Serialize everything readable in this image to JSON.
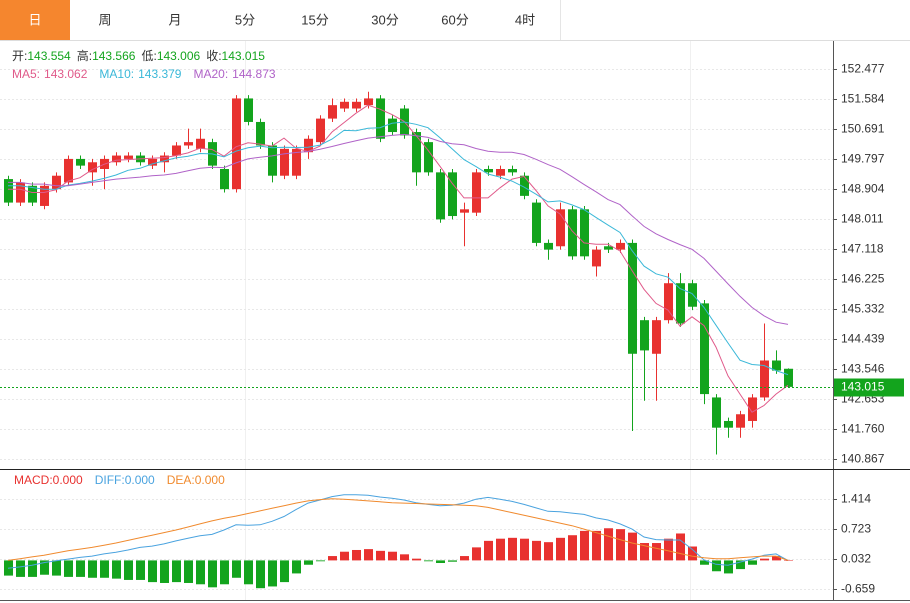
{
  "tabs": [
    "日",
    "周",
    "月",
    "5分",
    "15分",
    "30分",
    "60分",
    "4时"
  ],
  "active_tab": 0,
  "chart_data": [
    {
      "type": "candlestick",
      "legend": [
        {
          "label": "开:",
          "value": 143.554
        },
        {
          "label": "高:",
          "value": 143.566
        },
        {
          "label": "低:",
          "value": 143.006
        },
        {
          "label": "收:",
          "value": 143.015
        }
      ],
      "ma_legend": [
        {
          "label": "MA5:",
          "value": 143.062
        },
        {
          "label": "MA10:",
          "value": 143.379
        },
        {
          "label": "MA20:",
          "value": 144.873
        }
      ],
      "open": [
        149.2,
        148.5,
        149.0,
        148.4,
        148.9,
        149.1,
        149.8,
        149.4,
        149.5,
        149.7,
        149.8,
        149.9,
        149.6,
        149.7,
        149.9,
        150.2,
        150.1,
        150.3,
        149.5,
        148.9,
        151.6,
        150.9,
        150.2,
        149.3,
        149.3,
        150.0,
        150.3,
        151.0,
        151.3,
        151.3,
        151.4,
        151.6,
        151.0,
        151.3,
        150.6,
        150.3,
        149.4,
        149.4,
        148.2,
        148.2,
        149.5,
        149.3,
        149.5,
        149.3,
        148.5,
        147.3,
        147.2,
        148.3,
        148.3,
        146.6,
        147.2,
        147.1,
        147.3,
        145.0,
        144.0,
        145.0,
        146.1,
        146.1,
        145.5,
        142.7,
        142.0,
        141.8,
        142.0,
        142.7,
        143.8,
        143.554
      ],
      "high": [
        149.3,
        149.2,
        149.1,
        149.1,
        149.4,
        149.9,
        149.9,
        149.8,
        149.9,
        150.0,
        150.0,
        150.0,
        149.9,
        150.0,
        150.3,
        150.7,
        150.7,
        150.4,
        149.6,
        151.7,
        151.7,
        151.0,
        150.3,
        150.2,
        150.2,
        150.5,
        151.1,
        151.6,
        151.6,
        151.6,
        151.8,
        151.7,
        151.1,
        151.4,
        150.7,
        150.4,
        149.5,
        149.5,
        148.5,
        149.5,
        149.6,
        149.6,
        149.6,
        149.4,
        148.6,
        147.4,
        148.5,
        148.4,
        148.4,
        147.2,
        147.3,
        147.4,
        147.4,
        145.1,
        145.1,
        146.4,
        146.4,
        146.2,
        145.6,
        142.8,
        142.1,
        142.3,
        142.8,
        144.9,
        144.1,
        143.566
      ],
      "low": [
        148.4,
        148.4,
        148.4,
        148.3,
        148.8,
        149.0,
        149.5,
        149.0,
        148.9,
        149.6,
        149.7,
        149.6,
        149.5,
        149.4,
        149.8,
        150.1,
        150.0,
        149.5,
        148.8,
        148.8,
        150.8,
        150.1,
        149.1,
        149.2,
        149.2,
        149.8,
        150.2,
        150.9,
        151.2,
        151.2,
        151.3,
        150.3,
        150.5,
        150.4,
        149.0,
        149.3,
        147.9,
        148.0,
        147.2,
        148.1,
        149.3,
        149.2,
        149.3,
        148.6,
        147.2,
        146.8,
        147.1,
        146.8,
        146.8,
        146.3,
        147.0,
        147.0,
        141.7,
        142.6,
        142.6,
        144.9,
        144.8,
        145.3,
        142.5,
        141.0,
        141.5,
        141.5,
        141.8,
        142.6,
        143.4,
        143.006
      ],
      "close": [
        148.5,
        149.1,
        148.5,
        149.0,
        149.3,
        149.8,
        149.6,
        149.7,
        149.8,
        149.9,
        149.9,
        149.7,
        149.8,
        149.9,
        150.2,
        150.3,
        150.4,
        149.6,
        148.9,
        151.6,
        150.9,
        150.2,
        149.3,
        150.1,
        150.1,
        150.4,
        151.0,
        151.4,
        151.5,
        151.5,
        151.6,
        150.4,
        150.6,
        150.5,
        149.4,
        149.4,
        148.0,
        148.1,
        148.3,
        149.4,
        149.4,
        149.5,
        149.4,
        148.7,
        147.3,
        147.1,
        148.3,
        146.9,
        146.9,
        147.1,
        147.1,
        147.3,
        144.0,
        144.1,
        145.0,
        146.1,
        144.9,
        145.4,
        142.8,
        141.8,
        141.8,
        142.2,
        142.7,
        143.8,
        143.5,
        143.015
      ],
      "up_color": "#e8312f",
      "down_color": "#13a41d",
      "series": [
        {
          "name": "MA5",
          "color": "#e05a8a",
          "values": [
            148.9,
            148.9,
            148.8,
            148.8,
            148.88,
            149.14,
            149.24,
            149.48,
            149.64,
            149.76,
            149.78,
            149.8,
            149.82,
            149.84,
            149.9,
            149.98,
            150.12,
            150.08,
            149.88,
            150.16,
            150.28,
            150.24,
            150.18,
            150.42,
            150.12,
            150.02,
            150.18,
            150.6,
            150.88,
            151.16,
            151.4,
            151.28,
            151.12,
            150.92,
            150.5,
            150.06,
            149.58,
            149.08,
            148.64,
            148.64,
            148.64,
            148.94,
            149.2,
            149.28,
            148.86,
            148.4,
            148.16,
            147.66,
            147.3,
            147.26,
            147.26,
            147.06,
            146.48,
            145.92,
            145.5,
            145.3,
            144.82,
            145.1,
            144.84,
            144.2,
            143.34,
            142.8,
            142.26,
            142.46,
            142.8,
            143.062
          ]
        },
        {
          "name": "MA10",
          "color": "#3bb8d8",
          "values": [
            149.0,
            149.0,
            148.95,
            148.9,
            148.9,
            149.02,
            149.07,
            149.14,
            149.22,
            149.32,
            149.46,
            149.52,
            149.65,
            149.74,
            149.83,
            149.88,
            149.96,
            149.95,
            149.86,
            150.03,
            150.13,
            150.18,
            150.13,
            150.15,
            150.14,
            150.15,
            150.21,
            150.39,
            150.65,
            150.64,
            150.71,
            150.73,
            150.86,
            150.9,
            150.83,
            150.73,
            150.43,
            150.1,
            149.78,
            149.57,
            149.35,
            149.26,
            149.14,
            148.96,
            148.75,
            148.52,
            148.55,
            148.43,
            148.29,
            148.06,
            147.83,
            147.61,
            147.07,
            146.61,
            146.38,
            146.28,
            145.94,
            145.79,
            145.38,
            144.85,
            144.32,
            143.81,
            143.68,
            143.65,
            143.5,
            143.379
          ]
        },
        {
          "name": "MA20",
          "color": "#b063c8",
          "values": [
            149.1,
            149.1,
            149.05,
            149.05,
            149.0,
            149.0,
            149.05,
            149.1,
            149.15,
            149.2,
            149.23,
            149.26,
            149.3,
            149.32,
            149.37,
            149.45,
            149.52,
            149.55,
            149.54,
            149.68,
            149.8,
            149.85,
            149.89,
            149.95,
            149.99,
            150.02,
            150.09,
            150.17,
            150.26,
            150.34,
            150.42,
            150.46,
            150.5,
            150.53,
            150.49,
            150.44,
            150.32,
            150.25,
            150.22,
            150.11,
            150.03,
            150.0,
            150.0,
            149.93,
            149.79,
            149.63,
            149.49,
            149.27,
            149.04,
            148.82,
            148.59,
            148.44,
            148.11,
            147.79,
            147.57,
            147.4,
            147.25,
            147.11,
            146.84,
            146.46,
            146.08,
            145.71,
            145.38,
            145.13,
            144.94,
            144.873
          ]
        }
      ],
      "last_price": 143.015,
      "last_price_color": "#13a41d",
      "ylim": [
        140.6,
        153.28
      ],
      "yticks": [
        152.477,
        151.584,
        150.691,
        149.797,
        148.904,
        148.011,
        147.118,
        146.225,
        145.332,
        144.439,
        143.546,
        142.653,
        {
          "value": 141.76,
          "label": "141.760"
        },
        140.867
      ],
      "grid": true
    },
    {
      "type": "macd",
      "legend": [
        {
          "label": "MACD:",
          "value": 0,
          "value_label": "0.000",
          "color": "#e8312f"
        },
        {
          "label": "DIFF:",
          "value": 0,
          "value_label": "0.000",
          "color": "#4aa3df"
        },
        {
          "label": "DEA:",
          "value": 0,
          "value_label": "0.000",
          "color": "#f08a2e"
        }
      ],
      "values": [
        -0.35,
        -0.38,
        -0.38,
        -0.33,
        -0.35,
        -0.38,
        -0.38,
        -0.4,
        -0.4,
        -0.42,
        -0.45,
        -0.45,
        -0.5,
        -0.52,
        -0.5,
        -0.52,
        -0.55,
        -0.62,
        -0.55,
        -0.4,
        -0.55,
        -0.64,
        -0.6,
        -0.5,
        -0.3,
        -0.1,
        -0.02,
        0.1,
        0.2,
        0.24,
        0.26,
        0.22,
        0.2,
        0.14,
        0.04,
        -0.02,
        -0.06,
        -0.03,
        0.1,
        0.3,
        0.45,
        0.5,
        0.52,
        0.5,
        0.45,
        0.42,
        0.52,
        0.58,
        0.68,
        0.68,
        0.74,
        0.72,
        0.64,
        0.4,
        0.4,
        0.5,
        0.62,
        0.32,
        -0.1,
        -0.25,
        -0.3,
        -0.2,
        -0.1,
        0.04,
        0.1,
        0
      ],
      "up_color": "#e8312f",
      "down_color": "#13a41d",
      "series": [
        {
          "name": "DIFF",
          "color": "#4aa3df",
          "values": [
            -0.18,
            -0.15,
            -0.11,
            -0.05,
            -0.01,
            0.03,
            0.07,
            0.1,
            0.15,
            0.19,
            0.24,
            0.3,
            0.33,
            0.38,
            0.45,
            0.51,
            0.57,
            0.6,
            0.7,
            0.82,
            0.81,
            0.82,
            0.9,
            1.01,
            1.17,
            1.32,
            1.39,
            1.47,
            1.51,
            1.51,
            1.5,
            1.46,
            1.43,
            1.39,
            1.33,
            1.29,
            1.26,
            1.27,
            1.32,
            1.41,
            1.45,
            1.41,
            1.36,
            1.29,
            1.21,
            1.13,
            1.12,
            1.09,
            1.06,
            0.98,
            0.93,
            0.84,
            0.72,
            0.54,
            0.48,
            0.47,
            0.47,
            0.26,
            0.01,
            -0.09,
            -0.11,
            -0.04,
            0.03,
            0.12,
            0.15,
            0
          ]
        },
        {
          "name": "DEA",
          "color": "#f08a2e",
          "values": [
            0,
            0.04,
            0.08,
            0.12,
            0.17,
            0.22,
            0.26,
            0.3,
            0.35,
            0.4,
            0.46,
            0.52,
            0.58,
            0.64,
            0.7,
            0.77,
            0.84,
            0.91,
            0.97,
            1.02,
            1.08,
            1.14,
            1.2,
            1.26,
            1.32,
            1.37,
            1.4,
            1.42,
            1.41,
            1.39,
            1.37,
            1.35,
            1.33,
            1.32,
            1.31,
            1.3,
            1.29,
            1.28,
            1.27,
            1.26,
            1.22,
            1.16,
            1.1,
            1.04,
            0.98,
            0.92,
            0.86,
            0.8,
            0.72,
            0.64,
            0.56,
            0.48,
            0.4,
            0.34,
            0.28,
            0.22,
            0.16,
            0.1,
            0.06,
            0.04,
            0.04,
            0.06,
            0.08,
            0.1,
            0.1,
            0
          ]
        }
      ],
      "ylim": [
        -0.912,
        2.036
      ],
      "yticks": [
        1.414,
        0.723,
        0.032,
        -0.659
      ],
      "grid": true
    }
  ]
}
